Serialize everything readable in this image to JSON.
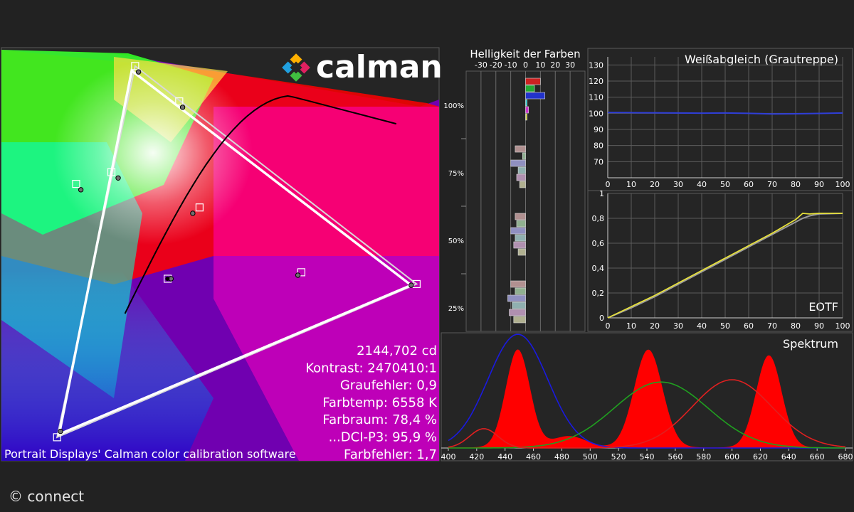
{
  "branding": {
    "logo_text": "calman",
    "copyright": "© connect",
    "caption": "Portrait Displays' Calman color calibration software"
  },
  "stats": [
    "2144,702 cd",
    "Kontrast: 2470410:1",
    "Graufehler: 0,9",
    "Farbtemp: 6558 K",
    "Farbraum: 78,4 %",
    "...DCI-P3: 95,9 %",
    "Farbfehler: 1,7"
  ],
  "colors": {
    "background": "#222222",
    "panel": "#252525",
    "gamut_outline": "#ffffff",
    "eotf_line": "#e8e23a",
    "eotf_target": "#9a9a9a",
    "whitebalance_line": "#2f3ed8"
  },
  "chart_data": [
    {
      "type": "scatter",
      "name": "cie",
      "target_triangle": [
        [
          0.68,
          0.32
        ],
        [
          0.265,
          0.69
        ],
        [
          0.15,
          0.06
        ]
      ],
      "measured_triangle": [
        [
          0.672,
          0.318
        ],
        [
          0.26,
          0.682
        ],
        [
          0.153,
          0.065
        ]
      ],
      "white_point": [
        0.3127,
        0.329
      ],
      "targets": [
        [
          0.15,
          0.06
        ],
        [
          0.265,
          0.69
        ],
        [
          0.68,
          0.32
        ],
        [
          0.178,
          0.49
        ],
        [
          0.33,
          0.63
        ],
        [
          0.51,
          0.34
        ],
        [
          0.313,
          0.329
        ],
        [
          0.36,
          0.45
        ],
        [
          0.23,
          0.51
        ]
      ],
      "measured": [
        [
          0.155,
          0.07
        ],
        [
          0.27,
          0.68
        ],
        [
          0.672,
          0.318
        ],
        [
          0.185,
          0.48
        ],
        [
          0.335,
          0.62
        ],
        [
          0.505,
          0.335
        ],
        [
          0.318,
          0.329
        ],
        [
          0.35,
          0.44
        ],
        [
          0.24,
          0.5
        ]
      ]
    },
    {
      "type": "bar",
      "name": "helligkeit",
      "title": "Helligkeit der Farben",
      "x_ticks": [
        -30,
        -20,
        -10,
        0,
        10,
        20,
        30
      ],
      "xlim": [
        -40,
        40
      ],
      "level_labels": [
        "100%",
        "75%",
        "50%",
        "25%"
      ],
      "groups": [
        {
          "level": 100,
          "values": [
            {
              "c": "#cc2222",
              "v": 10
            },
            {
              "c": "#22aa33",
              "v": 6
            },
            {
              "c": "#2233cc",
              "v": 13
            },
            {
              "c": "#22cccc",
              "v": 1
            },
            {
              "c": "#cc33cc",
              "v": 2
            },
            {
              "c": "#cccc33",
              "v": 1
            }
          ]
        },
        {
          "level": 75,
          "values": [
            {
              "c": "#b09090",
              "v": -7
            },
            {
              "c": "#90b090",
              "v": -2
            },
            {
              "c": "#9090c0",
              "v": -10
            },
            {
              "c": "#90b0b0",
              "v": -5
            },
            {
              "c": "#b090b0",
              "v": -6
            },
            {
              "c": "#b0b090",
              "v": -4
            }
          ]
        },
        {
          "level": 50,
          "values": [
            {
              "c": "#b09090",
              "v": -7
            },
            {
              "c": "#90b090",
              "v": -6
            },
            {
              "c": "#9090c0",
              "v": -10
            },
            {
              "c": "#90b0b0",
              "v": -7
            },
            {
              "c": "#b090b0",
              "v": -8
            },
            {
              "c": "#b0b090",
              "v": -5
            }
          ]
        },
        {
          "level": 25,
          "values": [
            {
              "c": "#b09090",
              "v": -10
            },
            {
              "c": "#90b090",
              "v": -7
            },
            {
              "c": "#9090c0",
              "v": -12
            },
            {
              "c": "#90b0b0",
              "v": -9
            },
            {
              "c": "#b090b0",
              "v": -11
            },
            {
              "c": "#b0b090",
              "v": -8
            }
          ]
        }
      ]
    },
    {
      "type": "line",
      "name": "weissabgleich",
      "title": "Weißabgleich (Grautreppe)",
      "x": [
        0,
        10,
        20,
        30,
        40,
        50,
        60,
        70,
        80,
        90,
        100
      ],
      "y": [
        100.5,
        100.4,
        100.3,
        100.2,
        100.1,
        100.2,
        100.0,
        99.6,
        99.7,
        99.9,
        100.2
      ],
      "xlim": [
        0,
        100
      ],
      "ylim": [
        60,
        135
      ],
      "y_ticks": [
        70,
        80,
        90,
        100,
        110,
        120,
        130
      ]
    },
    {
      "type": "line",
      "name": "eotf",
      "title": "EOTF",
      "x": [
        0,
        10,
        20,
        30,
        40,
        50,
        60,
        70,
        80,
        83,
        86,
        90,
        100
      ],
      "y": [
        0,
        0.09,
        0.18,
        0.28,
        0.38,
        0.48,
        0.58,
        0.68,
        0.79,
        0.84,
        0.835,
        0.84,
        0.84
      ],
      "target_y": [
        0,
        0.08,
        0.17,
        0.27,
        0.37,
        0.47,
        0.57,
        0.67,
        0.77,
        0.8,
        0.82,
        0.835,
        0.84
      ],
      "xlim": [
        0,
        100
      ],
      "ylim": [
        0,
        1
      ],
      "y_ticks": [
        "0",
        "0,2",
        "0,4",
        "0,6",
        "0,8",
        "1"
      ],
      "x_ticks": [
        0,
        10,
        20,
        30,
        40,
        50,
        60,
        70,
        80,
        90,
        100
      ]
    },
    {
      "type": "area",
      "name": "spektrum",
      "title": "Spektrum",
      "x_ticks": [
        400,
        420,
        440,
        460,
        480,
        500,
        520,
        540,
        560,
        580,
        600,
        620,
        640,
        660,
        680
      ],
      "xlim": [
        395,
        685
      ],
      "peaks": [
        {
          "center": 449,
          "sigma": 8.5,
          "amp": 0.86
        },
        {
          "center": 541,
          "sigma": 10,
          "amp": 0.86
        },
        {
          "center": 626,
          "sigma": 9,
          "amp": 0.81
        }
      ],
      "filter_curves": [
        {
          "color": "#1a1ae0",
          "center": 449,
          "sigma": 21,
          "amp": 1.0
        },
        {
          "color": "#20a020",
          "center": 550,
          "sigma": 33,
          "amp": 0.58
        },
        {
          "color": "#e02020",
          "center": 600,
          "sigma": 28,
          "amp": 0.6
        }
      ]
    }
  ]
}
